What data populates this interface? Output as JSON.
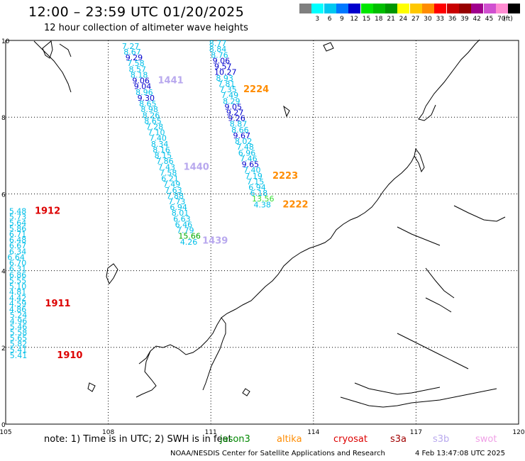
{
  "header": {
    "title": "12:00 – 23:59 UTC 01/20/2025",
    "subtitle": "12 hour collection of altimeter wave heights"
  },
  "scale": {
    "unit": "(ft)",
    "bins": [
      {
        "label": "",
        "color": "#7f7f7f"
      },
      {
        "label": "3",
        "color": "#00ffff"
      },
      {
        "label": "6",
        "color": "#00c8f0"
      },
      {
        "label": "9",
        "color": "#0078ff"
      },
      {
        "label": "12",
        "color": "#0000cd"
      },
      {
        "label": "15",
        "color": "#00e600"
      },
      {
        "label": "18",
        "color": "#00be00"
      },
      {
        "label": "21",
        "color": "#009600"
      },
      {
        "label": "24",
        "color": "#ffff00"
      },
      {
        "label": "27",
        "color": "#ffc800"
      },
      {
        "label": "30",
        "color": "#ff8c00"
      },
      {
        "label": "33",
        "color": "#ff0000"
      },
      {
        "label": "36",
        "color": "#c80000"
      },
      {
        "label": "39",
        "color": "#960000"
      },
      {
        "label": "42",
        "color": "#a0008c"
      },
      {
        "label": "45",
        "color": "#d050d0"
      },
      {
        "label": "70",
        "color": "#ff8cd2"
      },
      {
        "label": "",
        "color": "#000000"
      }
    ]
  },
  "axes": {
    "x_labels": [
      "105",
      "108",
      "111",
      "114",
      "117",
      "120"
    ],
    "y_labels": [
      "0",
      "2",
      "4",
      "6",
      "8",
      "10"
    ],
    "lon_range": [
      105,
      120
    ],
    "lat_range": [
      0,
      10
    ]
  },
  "colors": {
    "h6_9": "#00bfe8",
    "h9_12": "#0000cd",
    "h12_15": "#33dd33",
    "h15_18": "#00aa00",
    "pass_altika": "#ff8c00",
    "pass_cryosat": "#dd0000",
    "pass_s3b": "#b8a8ee"
  },
  "tracks": [
    {
      "name": "track-1910-1912",
      "points": [
        {
          "lon": 105.1,
          "lat": 5.48,
          "value": "5.48"
        },
        {
          "lon": 105.1,
          "lat": 5.33,
          "value": "5.73"
        },
        {
          "lon": 105.1,
          "lat": 5.18,
          "value": "5.64"
        },
        {
          "lon": 105.1,
          "lat": 5.03,
          "value": "5.86"
        },
        {
          "lon": 105.1,
          "lat": 4.88,
          "value": "6.71"
        },
        {
          "lon": 105.1,
          "lat": 4.73,
          "value": "6.48"
        },
        {
          "lon": 105.1,
          "lat": 4.58,
          "value": "6.67"
        },
        {
          "lon": 105.1,
          "lat": 4.43,
          "value": "6.34"
        },
        {
          "lon": 105.05,
          "lat": 4.28,
          "value": "6.64"
        },
        {
          "lon": 105.1,
          "lat": 4.13,
          "value": "6.70"
        },
        {
          "lon": 105.1,
          "lat": 3.98,
          "value": "6.31"
        },
        {
          "lon": 105.1,
          "lat": 3.82,
          "value": "6.86"
        },
        {
          "lon": 105.1,
          "lat": 3.67,
          "value": "5.55"
        },
        {
          "lon": 105.1,
          "lat": 3.52,
          "value": "5.10"
        },
        {
          "lon": 105.1,
          "lat": 3.37,
          "value": "4.81"
        },
        {
          "lon": 105.1,
          "lat": 3.22,
          "value": "4.42"
        },
        {
          "lon": 105.1,
          "lat": 3.07,
          "value": "4.59"
        },
        {
          "lon": 105.1,
          "lat": 2.92,
          "value": "4.86"
        },
        {
          "lon": 105.12,
          "lat": 2.77,
          "value": "5.24"
        },
        {
          "lon": 105.12,
          "lat": 2.62,
          "value": "4.96"
        },
        {
          "lon": 105.12,
          "lat": 2.47,
          "value": "5.46"
        },
        {
          "lon": 105.12,
          "lat": 2.32,
          "value": "5.58"
        },
        {
          "lon": 105.12,
          "lat": 2.17,
          "value": "5.65"
        },
        {
          "lon": 105.12,
          "lat": 2.02,
          "value": "5.82"
        },
        {
          "lon": 105.12,
          "lat": 1.87,
          "value": "5.41"
        },
        {
          "lon": 105.12,
          "lat": 1.72,
          "value": "5.41"
        }
      ]
    },
    {
      "name": "track-1440-1441",
      "points": [
        {
          "lon": 108.4,
          "lat": 9.78,
          "value": "7.27"
        },
        {
          "lon": 108.45,
          "lat": 9.63,
          "value": "8.67"
        },
        {
          "lon": 108.5,
          "lat": 9.48,
          "value": "9.29"
        },
        {
          "lon": 108.55,
          "lat": 9.33,
          "value": "7.58"
        },
        {
          "lon": 108.6,
          "lat": 9.18,
          "value": "8.57"
        },
        {
          "lon": 108.65,
          "lat": 9.03,
          "value": "8.18"
        },
        {
          "lon": 108.7,
          "lat": 8.88,
          "value": "9.06"
        },
        {
          "lon": 108.75,
          "lat": 8.73,
          "value": "9.04"
        },
        {
          "lon": 108.8,
          "lat": 8.58,
          "value": "8.96"
        },
        {
          "lon": 108.85,
          "lat": 8.43,
          "value": "9.30"
        },
        {
          "lon": 108.9,
          "lat": 8.28,
          "value": "8.65"
        },
        {
          "lon": 108.95,
          "lat": 8.13,
          "value": "8.98"
        },
        {
          "lon": 109.0,
          "lat": 7.98,
          "value": "8.26"
        },
        {
          "lon": 109.05,
          "lat": 7.83,
          "value": "8.65"
        },
        {
          "lon": 109.1,
          "lat": 7.68,
          "value": "7.28"
        },
        {
          "lon": 109.15,
          "lat": 7.53,
          "value": "7.10"
        },
        {
          "lon": 109.2,
          "lat": 7.38,
          "value": "7.40"
        },
        {
          "lon": 109.25,
          "lat": 7.23,
          "value": "8.34"
        },
        {
          "lon": 109.3,
          "lat": 7.08,
          "value": "8.16"
        },
        {
          "lon": 109.35,
          "lat": 6.93,
          "value": "8.15"
        },
        {
          "lon": 109.4,
          "lat": 6.78,
          "value": "7.86"
        },
        {
          "lon": 109.45,
          "lat": 6.63,
          "value": "7.43"
        },
        {
          "lon": 109.5,
          "lat": 6.48,
          "value": "7.58"
        },
        {
          "lon": 109.55,
          "lat": 6.33,
          "value": "6.21"
        },
        {
          "lon": 109.6,
          "lat": 6.18,
          "value": "7.49"
        },
        {
          "lon": 109.65,
          "lat": 6.03,
          "value": "7.63"
        },
        {
          "lon": 109.7,
          "lat": 5.88,
          "value": "7.88"
        },
        {
          "lon": 109.75,
          "lat": 5.73,
          "value": "7.73"
        },
        {
          "lon": 109.8,
          "lat": 5.58,
          "value": "6.94"
        },
        {
          "lon": 109.85,
          "lat": 5.43,
          "value": "8.01"
        },
        {
          "lon": 109.9,
          "lat": 5.28,
          "value": "6.63"
        },
        {
          "lon": 109.95,
          "lat": 5.13,
          "value": "6.46"
        },
        {
          "lon": 110.0,
          "lat": 4.98,
          "value": "7.79"
        },
        {
          "lon": 110.05,
          "lat": 4.83,
          "value": "15.66"
        },
        {
          "lon": 110.1,
          "lat": 4.68,
          "value": "4.26"
        }
      ]
    },
    {
      "name": "track-2222-2224",
      "points": [
        {
          "lon": 110.95,
          "lat": 9.85,
          "value": "8.77"
        },
        {
          "lon": 110.95,
          "lat": 9.7,
          "value": "8.84"
        },
        {
          "lon": 111.0,
          "lat": 9.55,
          "value": "8.76"
        },
        {
          "lon": 111.05,
          "lat": 9.4,
          "value": "9.06"
        },
        {
          "lon": 111.1,
          "lat": 9.25,
          "value": "9.57"
        },
        {
          "lon": 111.1,
          "lat": 9.1,
          "value": "10.27"
        },
        {
          "lon": 111.15,
          "lat": 8.95,
          "value": "8.93"
        },
        {
          "lon": 111.2,
          "lat": 8.8,
          "value": "7.81"
        },
        {
          "lon": 111.25,
          "lat": 8.65,
          "value": "7.35"
        },
        {
          "lon": 111.3,
          "lat": 8.5,
          "value": "7.49"
        },
        {
          "lon": 111.35,
          "lat": 8.35,
          "value": "8.29"
        },
        {
          "lon": 111.4,
          "lat": 8.2,
          "value": "9.05"
        },
        {
          "lon": 111.45,
          "lat": 8.05,
          "value": "9.27"
        },
        {
          "lon": 111.5,
          "lat": 7.9,
          "value": "9.26"
        },
        {
          "lon": 111.55,
          "lat": 7.75,
          "value": "8.87"
        },
        {
          "lon": 111.6,
          "lat": 7.6,
          "value": "8.66"
        },
        {
          "lon": 111.65,
          "lat": 7.45,
          "value": "9.67"
        },
        {
          "lon": 111.7,
          "lat": 7.3,
          "value": "8.02"
        },
        {
          "lon": 111.75,
          "lat": 7.15,
          "value": "7.48"
        },
        {
          "lon": 111.8,
          "lat": 7.0,
          "value": "6.96"
        },
        {
          "lon": 111.85,
          "lat": 6.85,
          "value": "7.46"
        },
        {
          "lon": 111.9,
          "lat": 6.7,
          "value": "9.65"
        },
        {
          "lon": 111.95,
          "lat": 6.55,
          "value": "7.40"
        },
        {
          "lon": 112.0,
          "lat": 6.4,
          "value": "7.19"
        },
        {
          "lon": 112.05,
          "lat": 6.25,
          "value": "7.15"
        },
        {
          "lon": 112.1,
          "lat": 6.1,
          "value": "6.94"
        },
        {
          "lon": 112.15,
          "lat": 5.95,
          "value": "6.18"
        },
        {
          "lon": 112.2,
          "lat": 5.8,
          "value": "13.56"
        },
        {
          "lon": 112.25,
          "lat": 5.65,
          "value": "4.38"
        }
      ]
    }
  ],
  "pass_labels": [
    {
      "text": "1912",
      "lon": 105.85,
      "lat": 5.48,
      "color": "#dd0000"
    },
    {
      "text": "1911",
      "lon": 106.15,
      "lat": 3.07,
      "color": "#dd0000"
    },
    {
      "text": "1910",
      "lon": 106.5,
      "lat": 1.72,
      "color": "#dd0000"
    },
    {
      "text": "1441",
      "lon": 109.45,
      "lat": 8.88,
      "color": "#b8a8ee"
    },
    {
      "text": "1440",
      "lon": 110.2,
      "lat": 6.63,
      "color": "#b8a8ee"
    },
    {
      "text": "1439",
      "lon": 110.75,
      "lat": 4.7,
      "color": "#b8a8ee"
    },
    {
      "text": "2224",
      "lon": 111.95,
      "lat": 8.65,
      "color": "#ff8c00"
    },
    {
      "text": "2223",
      "lon": 112.8,
      "lat": 6.4,
      "color": "#ff8c00"
    },
    {
      "text": "2222",
      "lon": 113.1,
      "lat": 5.65,
      "color": "#ff8c00"
    }
  ],
  "note": "note:  1) Time is in UTC; 2) SWH is in feet",
  "legend": [
    {
      "name": "jason3",
      "color": "#008800"
    },
    {
      "name": "altika",
      "color": "#ff8c00"
    },
    {
      "name": "cryosat",
      "color": "#dd0000"
    },
    {
      "name": "s3a",
      "color": "#a00000"
    },
    {
      "name": "s3b",
      "color": "#b8a8ee"
    },
    {
      "name": "swot",
      "color": "#f0a0e6"
    }
  ],
  "footer": "NOAA/NESDIS Center for Satellite Applications and Research",
  "timestamp": "4 Feb 13:47:08 UTC 2025"
}
